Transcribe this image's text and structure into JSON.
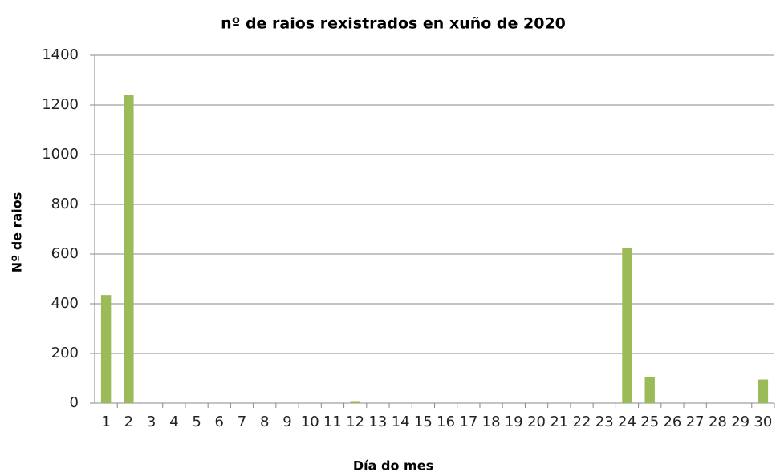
{
  "chart_data": {
    "type": "bar",
    "title": "nº de raios rexistrados en xuño de 2020",
    "x_label": "Día do mes",
    "y_label": "Nº de raios",
    "categories": [
      "1",
      "2",
      "3",
      "4",
      "5",
      "6",
      "7",
      "8",
      "9",
      "10",
      "11",
      "12",
      "13",
      "14",
      "15",
      "16",
      "17",
      "18",
      "19",
      "20",
      "21",
      "22",
      "23",
      "24",
      "25",
      "26",
      "27",
      "28",
      "29",
      "30"
    ],
    "values": [
      435,
      1240,
      0,
      0,
      0,
      0,
      0,
      0,
      0,
      0,
      0,
      5,
      0,
      0,
      0,
      0,
      0,
      0,
      0,
      0,
      0,
      0,
      0,
      625,
      105,
      0,
      0,
      0,
      0,
      95
    ],
    "color": "#9bbb59",
    "ylim": [
      0,
      1400
    ],
    "yticks": [
      0,
      200,
      400,
      600,
      800,
      1000,
      1200,
      1400
    ],
    "grid": true
  }
}
